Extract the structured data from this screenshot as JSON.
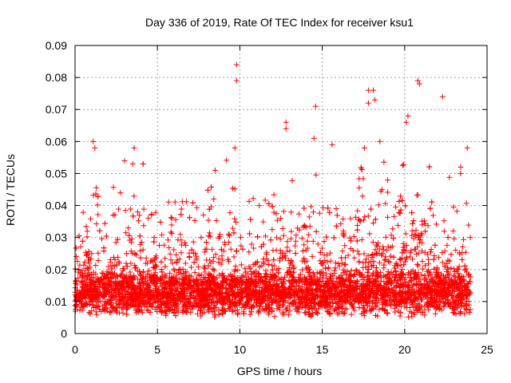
{
  "chart_data": {
    "type": "scatter",
    "title": "Day 336 of 2019, Rate Of TEC Index for receiver ksu1",
    "xlabel": "GPS time / hours",
    "ylabel": "ROTI / TECUs",
    "xlim": [
      0,
      25
    ],
    "ylim": [
      0,
      0.09
    ],
    "x_ticks": [
      "0",
      "5",
      "10",
      "15",
      "20",
      "25"
    ],
    "y_ticks": [
      "0",
      "0.01",
      "0.02",
      "0.03",
      "0.04",
      "0.05",
      "0.06",
      "0.07",
      "0.08",
      "0.09"
    ],
    "grid": true,
    "legend": "none",
    "marker": "plus",
    "color": "#ff0000",
    "x_coverage": [
      0,
      24
    ],
    "typical_band": [
      0.005,
      0.02
    ],
    "notable_points": [
      {
        "x": 1.1,
        "y": 0.06
      },
      {
        "x": 1.2,
        "y": 0.058
      },
      {
        "x": 3.0,
        "y": 0.054
      },
      {
        "x": 3.5,
        "y": 0.053
      },
      {
        "x": 8.5,
        "y": 0.051
      },
      {
        "x": 9.8,
        "y": 0.084
      },
      {
        "x": 9.8,
        "y": 0.079
      },
      {
        "x": 9.7,
        "y": 0.058
      },
      {
        "x": 12.8,
        "y": 0.066
      },
      {
        "x": 12.8,
        "y": 0.064
      },
      {
        "x": 14.6,
        "y": 0.071
      },
      {
        "x": 14.5,
        "y": 0.061
      },
      {
        "x": 15.6,
        "y": 0.059
      },
      {
        "x": 17.8,
        "y": 0.076
      },
      {
        "x": 18.1,
        "y": 0.076
      },
      {
        "x": 18.2,
        "y": 0.073
      },
      {
        "x": 17.8,
        "y": 0.072
      },
      {
        "x": 18.5,
        "y": 0.06
      },
      {
        "x": 20.2,
        "y": 0.068
      },
      {
        "x": 20.1,
        "y": 0.066
      },
      {
        "x": 20.8,
        "y": 0.079
      },
      {
        "x": 20.9,
        "y": 0.078
      },
      {
        "x": 22.3,
        "y": 0.074
      },
      {
        "x": 23.8,
        "y": 0.058
      },
      {
        "x": 23.4,
        "y": 0.052
      }
    ]
  }
}
